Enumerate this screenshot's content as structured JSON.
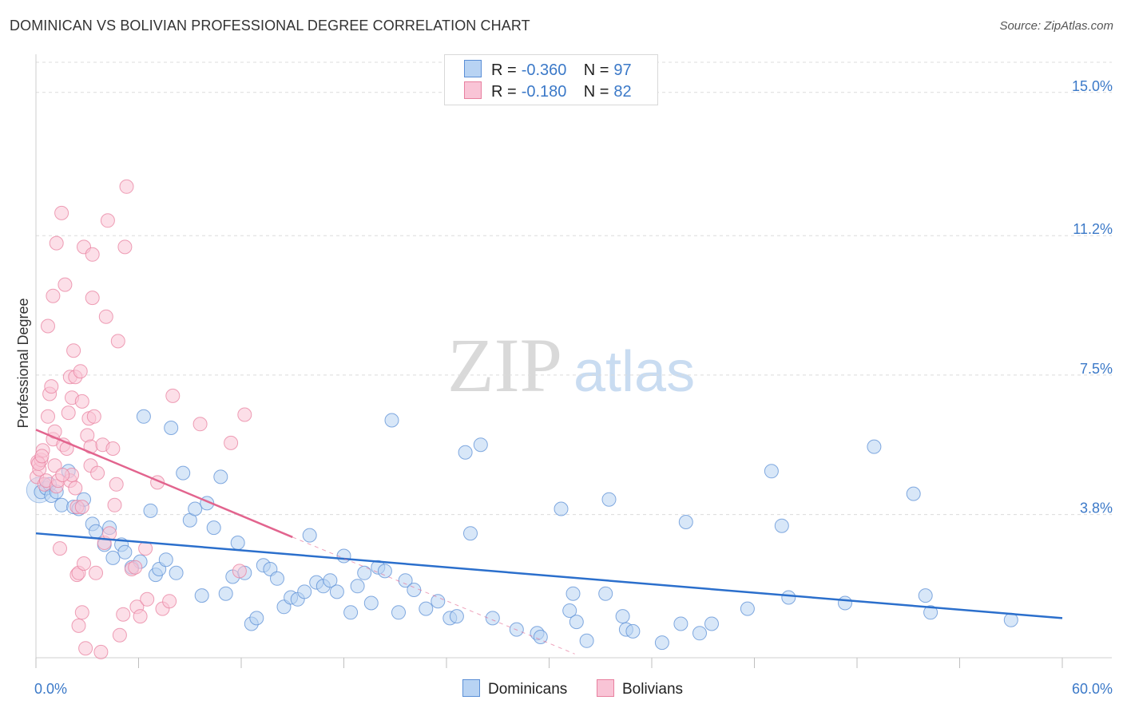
{
  "header": {
    "title": "DOMINICAN VS BOLIVIAN PROFESSIONAL DEGREE CORRELATION CHART",
    "source": "Source: ZipAtlas.com"
  },
  "legend": {
    "r_label": "R =",
    "n_label": "N =",
    "rows": [
      {
        "r": "-0.360",
        "n": "97"
      },
      {
        "r": "-0.180",
        "n": "82"
      }
    ]
  },
  "watermark": {
    "zip": "ZIP",
    "atlas": "atlas"
  },
  "colors": {
    "dominicans_fill": "#b8d3f3",
    "dominicans_stroke": "#5b8fd6",
    "dominicans_line": "#2b6fcc",
    "bolivians_fill": "#f9c4d6",
    "bolivians_stroke": "#e8809f",
    "bolivians_line": "#e2648e",
    "axis_text": "#3b79c8",
    "grid": "#dcdcdc"
  },
  "chart_data": {
    "type": "scatter",
    "title": "DOMINICAN VS BOLIVIAN PROFESSIONAL DEGREE CORRELATION CHART",
    "xlabel": "",
    "ylabel": "Professional Degree",
    "xlim": [
      0,
      60
    ],
    "ylim": [
      0,
      15.8
    ],
    "x_tick_labels": [
      "0.0%",
      "60.0%"
    ],
    "y_ticks": [
      3.8,
      7.5,
      11.2,
      15.0
    ],
    "y_tick_labels": [
      "3.8%",
      "7.5%",
      "11.2%",
      "15.0%"
    ],
    "series": [
      {
        "name": "Dominicans",
        "r": -0.36,
        "n": 97,
        "trend": {
          "x": [
            0,
            60
          ],
          "y": [
            3.3,
            1.05
          ]
        },
        "points": [
          [
            0.3,
            4.4
          ],
          [
            0.6,
            4.5
          ],
          [
            0.8,
            4.6
          ],
          [
            0.9,
            4.3
          ],
          [
            1.2,
            4.4
          ],
          [
            1.5,
            4.05
          ],
          [
            1.9,
            4.95
          ],
          [
            2.2,
            4.0
          ],
          [
            2.5,
            3.95
          ],
          [
            2.8,
            4.2
          ],
          [
            3.3,
            3.55
          ],
          [
            3.5,
            3.35
          ],
          [
            4.0,
            3.0
          ],
          [
            4.3,
            3.45
          ],
          [
            4.5,
            2.65
          ],
          [
            5.0,
            3.0
          ],
          [
            5.2,
            2.8
          ],
          [
            5.6,
            2.4
          ],
          [
            6.1,
            2.55
          ],
          [
            6.3,
            6.4
          ],
          [
            6.7,
            3.9
          ],
          [
            7.0,
            2.2
          ],
          [
            7.2,
            2.35
          ],
          [
            7.6,
            2.6
          ],
          [
            7.9,
            6.1
          ],
          [
            8.2,
            2.25
          ],
          [
            8.6,
            4.9
          ],
          [
            9.0,
            3.65
          ],
          [
            9.3,
            3.95
          ],
          [
            9.7,
            1.65
          ],
          [
            10.0,
            4.1
          ],
          [
            10.4,
            3.45
          ],
          [
            10.8,
            4.8
          ],
          [
            11.1,
            1.7
          ],
          [
            11.5,
            2.15
          ],
          [
            11.8,
            3.05
          ],
          [
            12.2,
            2.25
          ],
          [
            12.6,
            0.9
          ],
          [
            12.9,
            1.05
          ],
          [
            13.3,
            2.45
          ],
          [
            13.7,
            2.35
          ],
          [
            14.1,
            2.1
          ],
          [
            14.5,
            1.35
          ],
          [
            14.9,
            1.6
          ],
          [
            15.3,
            1.55
          ],
          [
            15.7,
            1.75
          ],
          [
            16.0,
            3.25
          ],
          [
            16.4,
            2.0
          ],
          [
            16.8,
            1.9
          ],
          [
            17.2,
            2.05
          ],
          [
            17.6,
            1.75
          ],
          [
            18.0,
            2.7
          ],
          [
            18.4,
            1.2
          ],
          [
            18.8,
            1.9
          ],
          [
            19.2,
            2.25
          ],
          [
            19.6,
            1.45
          ],
          [
            20.0,
            2.4
          ],
          [
            20.4,
            2.3
          ],
          [
            20.8,
            6.3
          ],
          [
            21.2,
            1.2
          ],
          [
            21.6,
            2.05
          ],
          [
            22.1,
            1.8
          ],
          [
            22.8,
            1.3
          ],
          [
            23.5,
            1.5
          ],
          [
            24.2,
            1.05
          ],
          [
            24.6,
            1.1
          ],
          [
            25.1,
            5.45
          ],
          [
            25.4,
            3.3
          ],
          [
            26.0,
            5.65
          ],
          [
            26.7,
            1.05
          ],
          [
            28.1,
            0.75
          ],
          [
            29.3,
            0.65
          ],
          [
            29.5,
            0.55
          ],
          [
            30.7,
            3.95
          ],
          [
            31.2,
            1.25
          ],
          [
            31.4,
            1.7
          ],
          [
            31.6,
            0.95
          ],
          [
            32.2,
            0.45
          ],
          [
            33.3,
            1.7
          ],
          [
            33.5,
            4.2
          ],
          [
            34.3,
            1.1
          ],
          [
            34.5,
            0.75
          ],
          [
            34.9,
            0.7
          ],
          [
            36.6,
            0.4
          ],
          [
            37.7,
            0.9
          ],
          [
            38.0,
            3.6
          ],
          [
            38.8,
            0.65
          ],
          [
            39.5,
            0.9
          ],
          [
            41.6,
            1.3
          ],
          [
            43.0,
            4.95
          ],
          [
            43.6,
            3.5
          ],
          [
            44.0,
            1.6
          ],
          [
            47.3,
            1.45
          ],
          [
            49.0,
            5.6
          ],
          [
            51.3,
            4.35
          ],
          [
            52.0,
            1.65
          ],
          [
            52.3,
            1.2
          ],
          [
            57.0,
            1.0
          ]
        ]
      },
      {
        "name": "Bolivians",
        "r": -0.18,
        "n": 82,
        "trend": {
          "x": [
            0,
            15
          ],
          "y": [
            6.05,
            3.2
          ]
        },
        "trend_dashed": {
          "x": [
            15,
            31.5
          ],
          "y": [
            3.2,
            0.1
          ]
        },
        "points": [
          [
            0.05,
            4.8
          ],
          [
            0.1,
            5.2
          ],
          [
            0.2,
            5.0
          ],
          [
            0.3,
            5.25
          ],
          [
            0.4,
            5.5
          ],
          [
            0.5,
            4.6
          ],
          [
            0.6,
            4.7
          ],
          [
            0.7,
            8.8
          ],
          [
            0.7,
            6.4
          ],
          [
            0.8,
            7.0
          ],
          [
            0.9,
            7.2
          ],
          [
            1.0,
            9.6
          ],
          [
            1.0,
            5.8
          ],
          [
            1.1,
            6.0
          ],
          [
            1.1,
            5.1
          ],
          [
            1.2,
            11.0
          ],
          [
            1.2,
            4.55
          ],
          [
            1.3,
            4.7
          ],
          [
            1.4,
            2.9
          ],
          [
            1.5,
            11.8
          ],
          [
            1.6,
            5.65
          ],
          [
            1.7,
            9.9
          ],
          [
            1.8,
            5.55
          ],
          [
            1.9,
            6.5
          ],
          [
            2.0,
            7.45
          ],
          [
            2.0,
            4.7
          ],
          [
            2.1,
            6.9
          ],
          [
            2.1,
            4.85
          ],
          [
            2.2,
            8.15
          ],
          [
            2.3,
            7.45
          ],
          [
            2.3,
            4.5
          ],
          [
            2.4,
            4.0
          ],
          [
            2.4,
            2.2
          ],
          [
            2.5,
            2.25
          ],
          [
            2.5,
            0.85
          ],
          [
            2.6,
            7.6
          ],
          [
            2.7,
            6.8
          ],
          [
            2.7,
            4.0
          ],
          [
            2.7,
            1.2
          ],
          [
            2.8,
            10.9
          ],
          [
            2.8,
            2.5
          ],
          [
            2.9,
            0.25
          ],
          [
            3.0,
            5.9
          ],
          [
            3.1,
            6.35
          ],
          [
            3.2,
            5.6
          ],
          [
            3.2,
            5.1
          ],
          [
            3.3,
            10.7
          ],
          [
            3.3,
            9.55
          ],
          [
            3.4,
            6.4
          ],
          [
            3.5,
            2.25
          ],
          [
            3.6,
            4.9
          ],
          [
            3.8,
            0.15
          ],
          [
            3.9,
            5.65
          ],
          [
            4.0,
            3.05
          ],
          [
            4.1,
            9.05
          ],
          [
            4.2,
            11.6
          ],
          [
            4.3,
            3.3
          ],
          [
            4.5,
            5.55
          ],
          [
            4.6,
            4.05
          ],
          [
            4.7,
            4.6
          ],
          [
            4.8,
            8.4
          ],
          [
            4.9,
            0.6
          ],
          [
            5.1,
            1.15
          ],
          [
            5.2,
            10.9
          ],
          [
            5.3,
            12.5
          ],
          [
            5.6,
            2.35
          ],
          [
            5.8,
            2.4
          ],
          [
            5.9,
            1.35
          ],
          [
            6.1,
            1.1
          ],
          [
            6.4,
            2.9
          ],
          [
            6.5,
            1.55
          ],
          [
            7.1,
            4.65
          ],
          [
            7.4,
            1.3
          ],
          [
            7.8,
            1.5
          ],
          [
            8.0,
            6.95
          ],
          [
            9.6,
            6.2
          ],
          [
            11.4,
            5.7
          ],
          [
            11.9,
            2.3
          ],
          [
            12.2,
            6.45
          ],
          [
            0.15,
            5.15
          ],
          [
            0.35,
            5.35
          ],
          [
            1.55,
            4.85
          ]
        ]
      }
    ]
  }
}
